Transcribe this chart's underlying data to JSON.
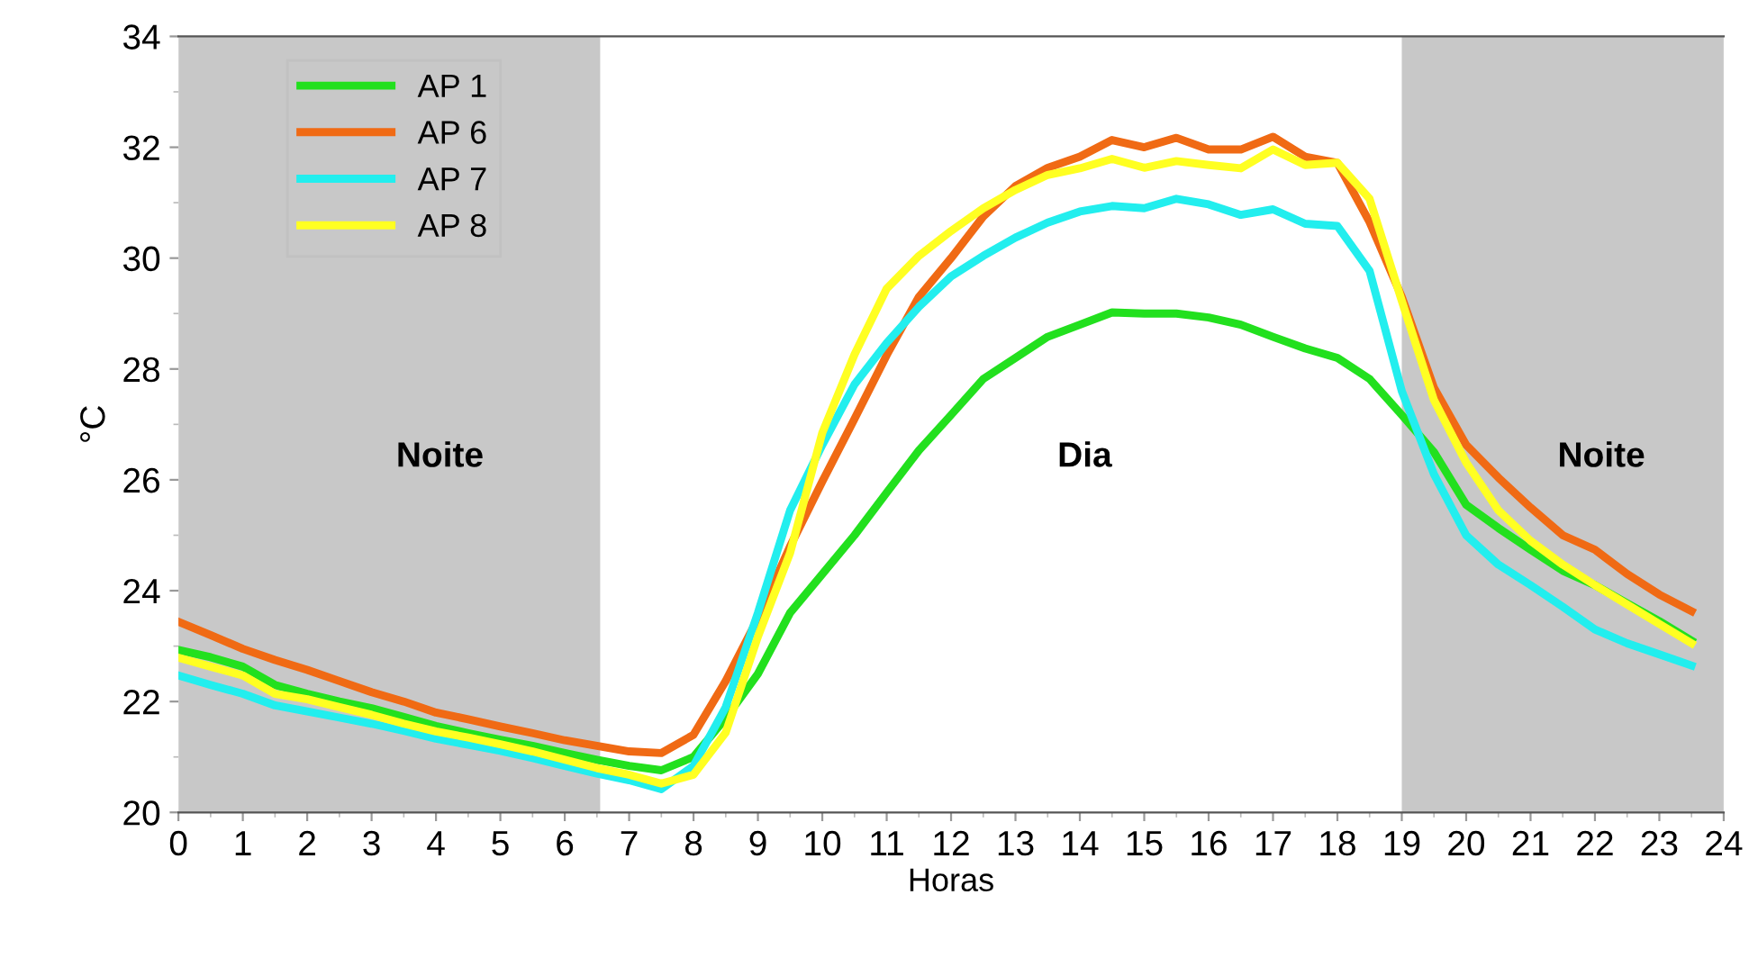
{
  "chart_data": {
    "type": "line",
    "xlabel": "Horas",
    "ylabel": "°C",
    "x": [
      0,
      0.5,
      1,
      1.5,
      2,
      2.5,
      3,
      3.5,
      4,
      4.5,
      5,
      5.5,
      6,
      6.5,
      7,
      7.5,
      8,
      8.5,
      9,
      9.5,
      10,
      10.5,
      11,
      11.5,
      12,
      12.5,
      13,
      13.5,
      14,
      14.5,
      15,
      15.5,
      16,
      16.5,
      17,
      17.5,
      18,
      18.5,
      19,
      19.5,
      20,
      20.5,
      21,
      21.5,
      22,
      22.5,
      23,
      23.5
    ],
    "series": [
      {
        "name": "AP 1",
        "color": "#22e01e",
        "values": [
          22.93,
          22.8,
          22.63,
          22.3,
          22.14,
          22.0,
          21.88,
          21.72,
          21.56,
          21.43,
          21.31,
          21.2,
          21.07,
          20.95,
          20.84,
          20.76,
          21.0,
          21.7,
          22.5,
          23.6,
          24.3,
          25.0,
          25.77,
          26.53,
          27.17,
          27.82,
          28.2,
          28.58,
          28.8,
          29.02,
          29.0,
          29.0,
          28.93,
          28.8,
          28.58,
          28.37,
          28.2,
          27.82,
          27.17,
          26.5,
          25.55,
          25.13,
          24.74,
          24.36,
          24.1,
          23.77,
          23.45,
          23.1
        ]
      },
      {
        "name": "AP 6",
        "color": "#f06a14",
        "values": [
          23.44,
          23.2,
          22.95,
          22.75,
          22.57,
          22.37,
          22.17,
          22.0,
          21.8,
          21.68,
          21.55,
          21.43,
          21.3,
          21.2,
          21.1,
          21.07,
          21.4,
          22.37,
          23.5,
          24.8,
          25.97,
          27.1,
          28.25,
          29.3,
          30.0,
          30.75,
          31.3,
          31.63,
          31.83,
          32.13,
          32.0,
          32.17,
          31.96,
          31.96,
          32.19,
          31.83,
          31.72,
          30.65,
          29.3,
          27.66,
          26.63,
          26.04,
          25.5,
          25.0,
          24.74,
          24.3,
          23.93,
          23.63
        ]
      },
      {
        "name": "AP 7",
        "color": "#22eeee",
        "values": [
          22.47,
          22.3,
          22.14,
          21.93,
          21.82,
          21.71,
          21.6,
          21.47,
          21.33,
          21.22,
          21.11,
          20.98,
          20.84,
          20.7,
          20.58,
          20.42,
          20.84,
          21.9,
          23.6,
          25.45,
          26.63,
          27.72,
          28.47,
          29.12,
          29.67,
          30.04,
          30.37,
          30.64,
          30.84,
          30.94,
          30.9,
          31.07,
          30.97,
          30.78,
          30.88,
          30.62,
          30.58,
          29.77,
          27.6,
          26.1,
          25.0,
          24.47,
          24.1,
          23.71,
          23.3,
          23.05,
          22.85,
          22.65
        ]
      },
      {
        "name": "AP 8",
        "color": "#ffff22",
        "values": [
          22.79,
          22.63,
          22.47,
          22.14,
          22.04,
          21.9,
          21.76,
          21.6,
          21.46,
          21.35,
          21.23,
          21.1,
          20.95,
          20.8,
          20.68,
          20.52,
          20.68,
          21.44,
          23.17,
          24.68,
          26.85,
          28.26,
          29.45,
          30.04,
          30.49,
          30.9,
          31.23,
          31.5,
          31.62,
          31.79,
          31.63,
          31.75,
          31.68,
          31.62,
          31.96,
          31.68,
          31.72,
          31.07,
          29.23,
          27.44,
          26.31,
          25.45,
          24.9,
          24.47,
          24.1,
          23.75,
          23.4,
          23.05
        ]
      }
    ],
    "bands": [
      {
        "axis": "x",
        "from": 0,
        "to": 6.55,
        "color": "#c8c8c8",
        "label": "Noite"
      },
      {
        "axis": "x",
        "from": 19,
        "to": 24,
        "color": "#c8c8c8",
        "label": "Noite"
      }
    ],
    "annotations": [
      "Dia"
    ],
    "xlim": [
      0,
      24
    ],
    "xticks": [
      0,
      1,
      2,
      3,
      4,
      5,
      6,
      7,
      8,
      9,
      10,
      11,
      12,
      13,
      14,
      15,
      16,
      17,
      18,
      19,
      20,
      21,
      22,
      23,
      24
    ],
    "ylim": [
      20,
      34
    ],
    "yticks": [
      20,
      22,
      24,
      26,
      28,
      30,
      32,
      34
    ],
    "legend": "top left",
    "grid": false,
    "marker": "none",
    "line_style": "solid"
  }
}
